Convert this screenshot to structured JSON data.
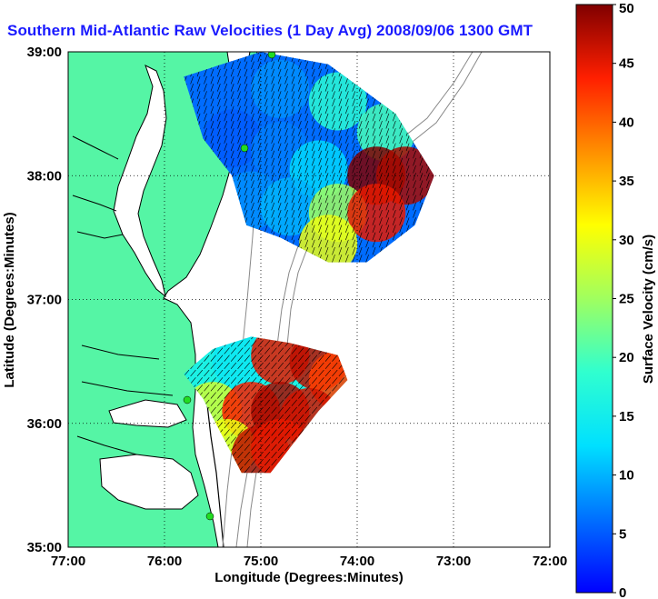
{
  "chart_data": {
    "type": "heatmap",
    "title": "Southern Mid-Atlantic Raw Velocities (1 Day Avg) 2008/09/06 1300 GMT",
    "xlabel": "Longitude (Degrees:Minutes)",
    "ylabel": "Latitude (Degrees:Minutes)",
    "xlim": [
      -77,
      -72
    ],
    "ylim": [
      35,
      39
    ],
    "xticks": [
      {
        "value": -77,
        "label": "77:00"
      },
      {
        "value": -76,
        "label": "76:00"
      },
      {
        "value": -75,
        "label": "75:00"
      },
      {
        "value": -74,
        "label": "74:00"
      },
      {
        "value": -73,
        "label": "73:00"
      },
      {
        "value": -72,
        "label": "72:00"
      }
    ],
    "yticks": [
      {
        "value": 35,
        "label": "35:00"
      },
      {
        "value": 36,
        "label": "36:00"
      },
      {
        "value": 37,
        "label": "37:00"
      },
      {
        "value": 38,
        "label": "38:00"
      },
      {
        "value": 39,
        "label": "39:00"
      }
    ],
    "grid": true,
    "colorbar": {
      "label": "Surface Velocity (cm/s)",
      "min": 0,
      "max": 50,
      "ticks": [
        {
          "value": 0,
          "label": "0"
        },
        {
          "value": 5,
          "label": "5"
        },
        {
          "value": 10,
          "label": "10"
        },
        {
          "value": 15,
          "label": "15"
        },
        {
          "value": 20,
          "label": "20"
        },
        {
          "value": 25,
          "label": "25"
        },
        {
          "value": 30,
          "label": "30"
        },
        {
          "value": 35,
          "label": "35"
        },
        {
          "value": 40,
          "label": "40"
        },
        {
          "value": 45,
          "label": "45"
        },
        {
          "value": 50,
          "label": "50"
        }
      ]
    },
    "regions": [
      {
        "polygon": [
          [
            -75.8,
            38.8
          ],
          [
            -75.0,
            39.0
          ],
          [
            -74.3,
            38.9
          ],
          [
            -73.6,
            38.5
          ],
          [
            -73.2,
            38.0
          ],
          [
            -73.4,
            37.6
          ],
          [
            -73.9,
            37.3
          ],
          [
            -74.3,
            37.3
          ],
          [
            -74.8,
            37.5
          ],
          [
            -75.15,
            37.6
          ],
          [
            -75.3,
            38.0
          ],
          [
            -75.6,
            38.3
          ]
        ],
        "points": [
          {
            "lon": -75.2,
            "lat": 38.8,
            "speed": 6
          },
          {
            "lon": -74.8,
            "lat": 38.7,
            "speed": 8
          },
          {
            "lon": -74.2,
            "lat": 38.6,
            "speed": 18
          },
          {
            "lon": -73.7,
            "lat": 38.35,
            "speed": 20
          },
          {
            "lon": -75.3,
            "lat": 38.3,
            "speed": 5
          },
          {
            "lon": -74.8,
            "lat": 38.2,
            "speed": 7
          },
          {
            "lon": -74.4,
            "lat": 38.05,
            "speed": 12
          },
          {
            "lon": -73.8,
            "lat": 38.0,
            "speed": 50
          },
          {
            "lon": -73.5,
            "lat": 38.0,
            "speed": 48
          },
          {
            "lon": -75.1,
            "lat": 37.8,
            "speed": 8
          },
          {
            "lon": -74.7,
            "lat": 37.75,
            "speed": 10
          },
          {
            "lon": -74.2,
            "lat": 37.7,
            "speed": 25
          },
          {
            "lon": -73.8,
            "lat": 37.7,
            "speed": 45
          },
          {
            "lon": -74.3,
            "lat": 37.45,
            "speed": 30
          }
        ]
      },
      {
        "polygon": [
          [
            -75.5,
            36.6
          ],
          [
            -75.1,
            36.7
          ],
          [
            -74.7,
            36.65
          ],
          [
            -74.2,
            36.55
          ],
          [
            -74.1,
            36.35
          ],
          [
            -74.4,
            36.1
          ],
          [
            -74.6,
            35.9
          ],
          [
            -74.9,
            35.6
          ],
          [
            -75.2,
            35.6
          ],
          [
            -75.4,
            35.9
          ],
          [
            -75.6,
            36.2
          ],
          [
            -75.8,
            36.4
          ]
        ],
        "points": [
          {
            "lon": -75.6,
            "lat": 36.35,
            "speed": 16
          },
          {
            "lon": -75.2,
            "lat": 36.5,
            "speed": 14
          },
          {
            "lon": -74.8,
            "lat": 36.55,
            "speed": 45
          },
          {
            "lon": -74.4,
            "lat": 36.5,
            "speed": 47
          },
          {
            "lon": -74.2,
            "lat": 36.35,
            "speed": 42
          },
          {
            "lon": -75.5,
            "lat": 36.1,
            "speed": 28
          },
          {
            "lon": -75.1,
            "lat": 36.1,
            "speed": 44
          },
          {
            "lon": -74.8,
            "lat": 36.1,
            "speed": 48
          },
          {
            "lon": -74.5,
            "lat": 36.05,
            "speed": 46
          },
          {
            "lon": -75.35,
            "lat": 35.8,
            "speed": 30
          },
          {
            "lon": -75.0,
            "lat": 35.75,
            "speed": 47
          },
          {
            "lon": -74.8,
            "lat": 35.8,
            "speed": 45
          }
        ]
      }
    ],
    "vectors": [
      {
        "region": 0,
        "direction_deg": 20
      },
      {
        "region": 1,
        "direction_deg": 40
      }
    ],
    "colors": {
      "land": "#55f5a5",
      "ocean": "#ffffff",
      "coast": "#000000",
      "bathymetry": "#888888",
      "grid": "#000000",
      "title": "#1a1aff",
      "station": "#22dd22"
    }
  }
}
